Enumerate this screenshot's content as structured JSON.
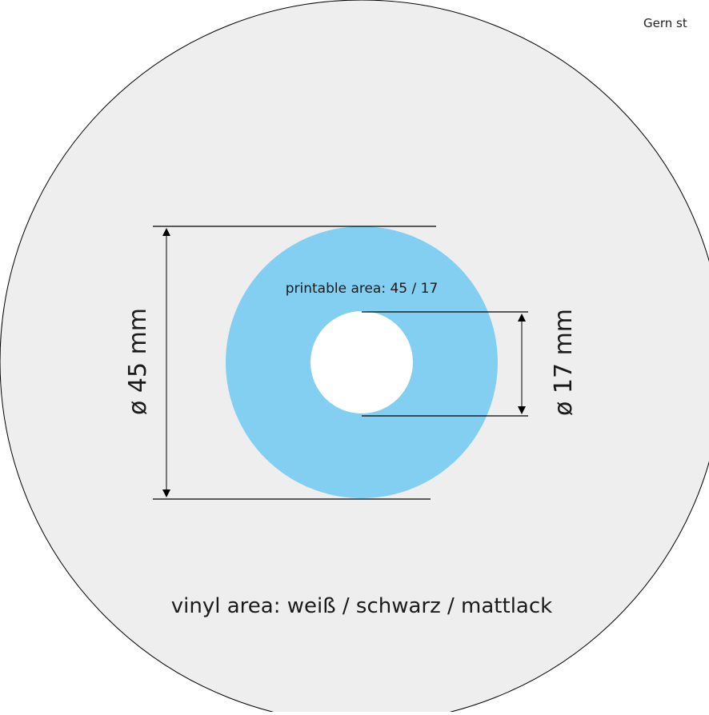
{
  "corner_note": "Gern st",
  "labels": {
    "printable_area": "printable area: 45 / 17",
    "outer_diameter": "ø 45 mm",
    "inner_diameter": "ø 17 mm",
    "vinyl_area": "vinyl area: weiß / schwarz / mattlack"
  },
  "colors": {
    "vinyl": "#eeeeee",
    "printable": "#83cff2",
    "hole": "#ffffff",
    "stroke": "#000000"
  }
}
